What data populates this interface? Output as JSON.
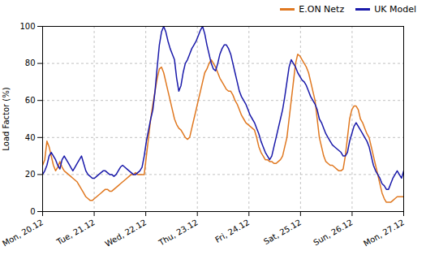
{
  "chart_data": {
    "type": "line",
    "ylabel": "Load Factor (%)",
    "x": [
      0,
      0.041916,
      0.083832,
      0.125749,
      0.167665,
      0.209581,
      0.251497,
      0.293413,
      0.335329,
      0.377246,
      0.419162,
      0.461078,
      0.502994,
      0.54491,
      0.586826,
      0.628743,
      0.670659,
      0.712575,
      0.754491,
      0.796407,
      0.838323,
      0.88024,
      0.922156,
      0.964072,
      1.005988,
      1.047904,
      1.08982,
      1.131737,
      1.173653,
      1.215569,
      1.257485,
      1.299401,
      1.341317,
      1.383234,
      1.42515,
      1.467066,
      1.508982,
      1.550898,
      1.592814,
      1.634731,
      1.676647,
      1.718563,
      1.760479,
      1.802395,
      1.844311,
      1.886228,
      1.928144,
      1.97006,
      2.011976,
      2.053892,
      2.095808,
      2.137725,
      2.179641,
      2.221557,
      2.263473,
      2.305389,
      2.347305,
      2.389222,
      2.431138,
      2.473054,
      2.51497,
      2.556886,
      2.598802,
      2.640719,
      2.682635,
      2.724551,
      2.766467,
      2.808383,
      2.850299,
      2.892216,
      2.934132,
      2.976048,
      3.017964,
      3.05988,
      3.101796,
      3.143713,
      3.185629,
      3.227545,
      3.269461,
      3.311377,
      3.353293,
      3.39521,
      3.437126,
      3.479042,
      3.520958,
      3.562874,
      3.60479,
      3.646707,
      3.688623,
      3.730539,
      3.772455,
      3.814371,
      3.856287,
      3.898204,
      3.94012,
      3.982036,
      4.023952,
      4.065868,
      4.107784,
      4.149701,
      4.191617,
      4.233533,
      4.275449,
      4.317365,
      4.359281,
      4.401198,
      4.443114,
      4.48503,
      4.526946,
      4.568862,
      4.610778,
      4.652695,
      4.694611,
      4.736527,
      4.778443,
      4.820359,
      4.862275,
      4.904192,
      4.946108,
      4.988024,
      5.02994,
      5.071856,
      5.113772,
      5.155689,
      5.197605,
      5.239521,
      5.281437,
      5.323353,
      5.365269,
      5.407186,
      5.449102,
      5.491018,
      5.532934,
      5.57485,
      5.616766,
      5.658683,
      5.700599,
      5.742515,
      5.784431,
      5.826347,
      5.868263,
      5.91018,
      5.952096,
      5.994012,
      6.035928,
      6.077844,
      6.11976,
      6.161677,
      6.203593,
      6.245509,
      6.287425,
      6.329341,
      6.371257,
      6.413174,
      6.45509,
      6.497006,
      6.538922,
      6.580838,
      6.622754,
      6.664671,
      6.706587,
      6.748503,
      6.790419,
      6.832335,
      6.874251,
      6.916168,
      6.958084,
      7
    ],
    "series": [
      {
        "name": "E.ON Netz",
        "color": "#e07820",
        "values": [
          25,
          28,
          38,
          35,
          30,
          25,
          22,
          24,
          27,
          24,
          22,
          21,
          20,
          19,
          18,
          17,
          16,
          14,
          12,
          10,
          8,
          7,
          6,
          6,
          7,
          8,
          9,
          10,
          11,
          12,
          12,
          11,
          11,
          12,
          13,
          14,
          15,
          16,
          17,
          18,
          19,
          20,
          20,
          21,
          20,
          20,
          20,
          20,
          30,
          40,
          50,
          58,
          65,
          72,
          77,
          78,
          75,
          70,
          65,
          60,
          55,
          50,
          47,
          45,
          44,
          42,
          40,
          39,
          40,
          45,
          50,
          55,
          60,
          65,
          70,
          75,
          77,
          80,
          82,
          80,
          78,
          75,
          72,
          70,
          68,
          66,
          65,
          65,
          63,
          60,
          58,
          55,
          52,
          50,
          48,
          47,
          46,
          45,
          44,
          40,
          35,
          32,
          30,
          28,
          28,
          27,
          27,
          26,
          26,
          27,
          28,
          30,
          35,
          40,
          50,
          60,
          70,
          80,
          85,
          84,
          82,
          80,
          78,
          75,
          70,
          65,
          60,
          50,
          40,
          35,
          30,
          27,
          26,
          25,
          25,
          24,
          23,
          22,
          22,
          23,
          30,
          40,
          50,
          55,
          57,
          57,
          55,
          50,
          48,
          45,
          42,
          40,
          35,
          30,
          25,
          20,
          15,
          10,
          7,
          5,
          5,
          5,
          6,
          7,
          8,
          8,
          8,
          8
        ]
      },
      {
        "name": "UK Model",
        "color": "#1a1aaa",
        "values": [
          20,
          22,
          25,
          30,
          32,
          30,
          28,
          25,
          23,
          28,
          30,
          28,
          26,
          24,
          22,
          24,
          26,
          28,
          30,
          26,
          22,
          20,
          19,
          18,
          18,
          19,
          20,
          21,
          22,
          22,
          21,
          20,
          20,
          19,
          20,
          22,
          24,
          25,
          24,
          23,
          22,
          21,
          20,
          20,
          21,
          22,
          24,
          30,
          38,
          44,
          50,
          55,
          65,
          78,
          90,
          97,
          100,
          97,
          92,
          88,
          85,
          82,
          72,
          65,
          68,
          75,
          80,
          82,
          85,
          88,
          90,
          92,
          95,
          98,
          100,
          96,
          90,
          85,
          80,
          77,
          76,
          80,
          85,
          88,
          90,
          90,
          88,
          85,
          80,
          75,
          70,
          65,
          62,
          60,
          58,
          55,
          52,
          50,
          48,
          45,
          42,
          38,
          35,
          32,
          30,
          28,
          30,
          35,
          40,
          45,
          50,
          55,
          62,
          70,
          78,
          82,
          80,
          78,
          75,
          73,
          71,
          70,
          68,
          65,
          62,
          60,
          58,
          55,
          50,
          48,
          45,
          42,
          40,
          38,
          36,
          35,
          34,
          33,
          32,
          30,
          30,
          32,
          38,
          42,
          46,
          48,
          46,
          44,
          42,
          40,
          38,
          35,
          30,
          25,
          22,
          20,
          18,
          15,
          14,
          12,
          12,
          15,
          18,
          20,
          22,
          20,
          18,
          22
        ]
      }
    ],
    "xlim": [
      0,
      7
    ],
    "xticks": [
      {
        "value": 0,
        "label": "Mon, 20.12"
      },
      {
        "value": 1,
        "label": "Tue, 21.12"
      },
      {
        "value": 2,
        "label": "Wed, 22.12"
      },
      {
        "value": 3,
        "label": "Thu, 23.12"
      },
      {
        "value": 4,
        "label": "Fri, 24.12"
      },
      {
        "value": 5,
        "label": "Sat, 25.12"
      },
      {
        "value": 6,
        "label": "Sun, 26.12"
      },
      {
        "value": 7,
        "label": "Mon, 27.12"
      }
    ],
    "ylim": [
      0,
      100
    ],
    "yticks": [
      0,
      20,
      40,
      60,
      80,
      100
    ],
    "grid": true,
    "legend": "upper right"
  }
}
